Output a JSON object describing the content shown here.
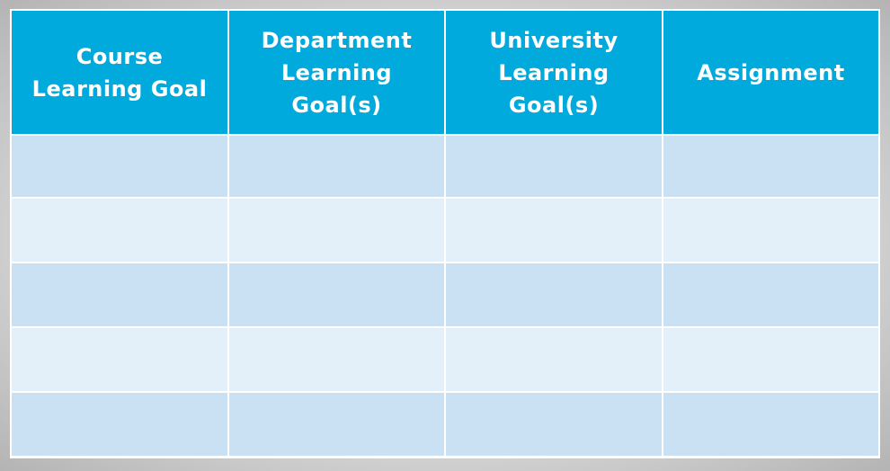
{
  "table": {
    "headers": [
      "Course\nLearning Goal",
      "Department\nLearning\nGoal(s)",
      "University\nLearning\nGoal(s)",
      "Assignment"
    ],
    "rows": [
      [
        "",
        "",
        "",
        ""
      ],
      [
        "",
        "",
        "",
        ""
      ],
      [
        "",
        "",
        "",
        ""
      ],
      [
        "",
        "",
        "",
        ""
      ],
      [
        "",
        "",
        "",
        ""
      ]
    ]
  },
  "colors": {
    "header_background": "#00aadc",
    "header_text": "#ffffff",
    "row_dark": "#c9e1f2",
    "row_light": "#e4f0f9",
    "grid_lines": "#ffffff"
  }
}
